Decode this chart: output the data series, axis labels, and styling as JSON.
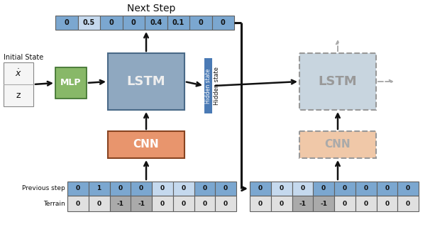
{
  "title": "Next Step",
  "bg_color": "#ffffff",
  "output_cells": [
    "0",
    "0.5",
    "0",
    "0",
    "0.4",
    "0.1",
    "0",
    "0"
  ],
  "output_cell_colors": [
    "#7ba7d0",
    "#c5d9ee",
    "#7ba7d0",
    "#7ba7d0",
    "#7ba7d0",
    "#7ba7d0",
    "#7ba7d0",
    "#7ba7d0"
  ],
  "prev_step_cells": [
    "0",
    "1",
    "0",
    "0",
    "0",
    "0",
    "0",
    "0"
  ],
  "prev_step_colors": [
    "#7ba7d0",
    "#7ba7d0",
    "#7ba7d0",
    "#7ba7d0",
    "#c5d9ee",
    "#c5d9ee",
    "#7ba7d0",
    "#7ba7d0"
  ],
  "terrain_cells": [
    "0",
    "0",
    "-1",
    "-1",
    "0",
    "0",
    "0",
    "0"
  ],
  "terrain_colors": [
    "#e0e0e0",
    "#e0e0e0",
    "#aaaaaa",
    "#aaaaaa",
    "#e0e0e0",
    "#e0e0e0",
    "#e0e0e0",
    "#e0e0e0"
  ],
  "prev_step_cells2": [
    "0",
    "0",
    "0",
    "0",
    "0",
    "0",
    "0",
    "0"
  ],
  "prev_step_colors2": [
    "#7ba7d0",
    "#c5d9ee",
    "#c5d9ee",
    "#7ba7d0",
    "#7ba7d0",
    "#7ba7d0",
    "#7ba7d0",
    "#7ba7d0"
  ],
  "terrain_cells2": [
    "0",
    "0",
    "-1",
    "-1",
    "0",
    "0",
    "0",
    "0"
  ],
  "terrain_colors2": [
    "#e0e0e0",
    "#e0e0e0",
    "#aaaaaa",
    "#aaaaaa",
    "#e0e0e0",
    "#e0e0e0",
    "#e0e0e0",
    "#e0e0e0"
  ],
  "lstm_color": "#8fa8c0",
  "lstm2_color": "#c8d5df",
  "cnn_color": "#e8956d",
  "cnn2_color": "#f0c8a8",
  "mlp_color": "#88b868",
  "hidden_bar_color": "#4a7ab5",
  "initial_box_color": "#f5f5f5",
  "arrow_color": "#111111",
  "dashed_arrow_color": "#aaaaaa",
  "figw": 6.06,
  "figh": 3.3,
  "dpi": 100
}
